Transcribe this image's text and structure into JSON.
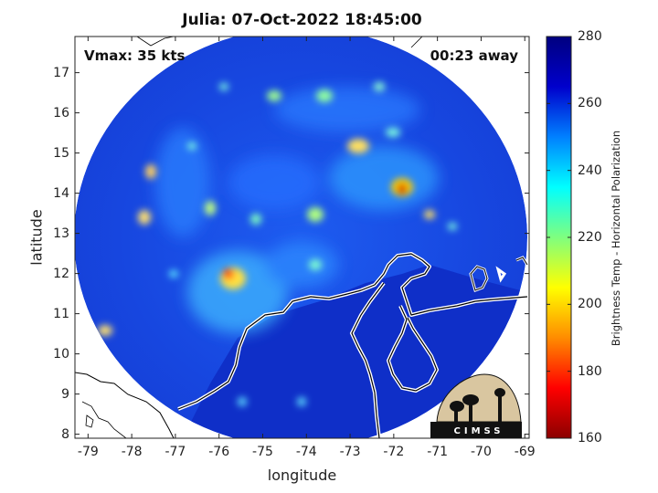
{
  "title": "Julia: 07-Oct-2022 18:45:00",
  "annotations": {
    "vmax": "Vmax: 35 kts",
    "time_away": "00:23 away"
  },
  "x_axis": {
    "label": "longitude",
    "ticks": [
      "-79",
      "-78",
      "-77",
      "-76",
      "-75",
      "-74",
      "-73",
      "-72",
      "-71",
      "-70",
      "-69"
    ],
    "range": [
      -79.3,
      -68.9
    ]
  },
  "y_axis": {
    "label": "latitude",
    "ticks": [
      "8",
      "9",
      "10",
      "11",
      "12",
      "13",
      "14",
      "15",
      "16",
      "17"
    ],
    "range": [
      7.9,
      17.9
    ]
  },
  "colorbar": {
    "label": "Brightness Temp - Horizontal Polarization",
    "ticks": [
      "160",
      "180",
      "200",
      "220",
      "240",
      "260",
      "280"
    ],
    "range": [
      160,
      280
    ],
    "colors": [
      "#8b0000",
      "#ff0000",
      "#ff8c00",
      "#ffff00",
      "#7fff7f",
      "#00ffff",
      "#0080ff",
      "#0000cc",
      "#00007f"
    ]
  },
  "logo": {
    "text": "CIMSS"
  }
}
